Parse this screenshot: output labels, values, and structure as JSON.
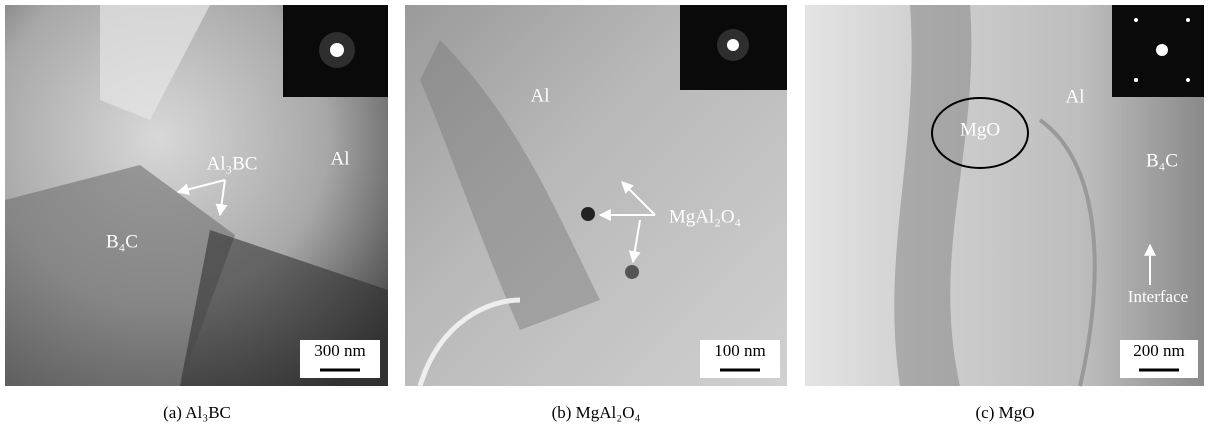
{
  "panels": [
    {
      "caption": "(a) Al₃BC",
      "labels": [
        "Al₃BC",
        "Al",
        "B₄C"
      ],
      "scale_bar": "300 nm"
    },
    {
      "caption": "(b) MgAl₂O₄",
      "labels": [
        "Al",
        "MgAl₂O₄"
      ],
      "scale_bar": "100 nm"
    },
    {
      "caption": "(c) MgO",
      "labels": [
        "MgO",
        "Al",
        "B₄C",
        "Interface"
      ],
      "scale_bar": "200 nm"
    }
  ]
}
